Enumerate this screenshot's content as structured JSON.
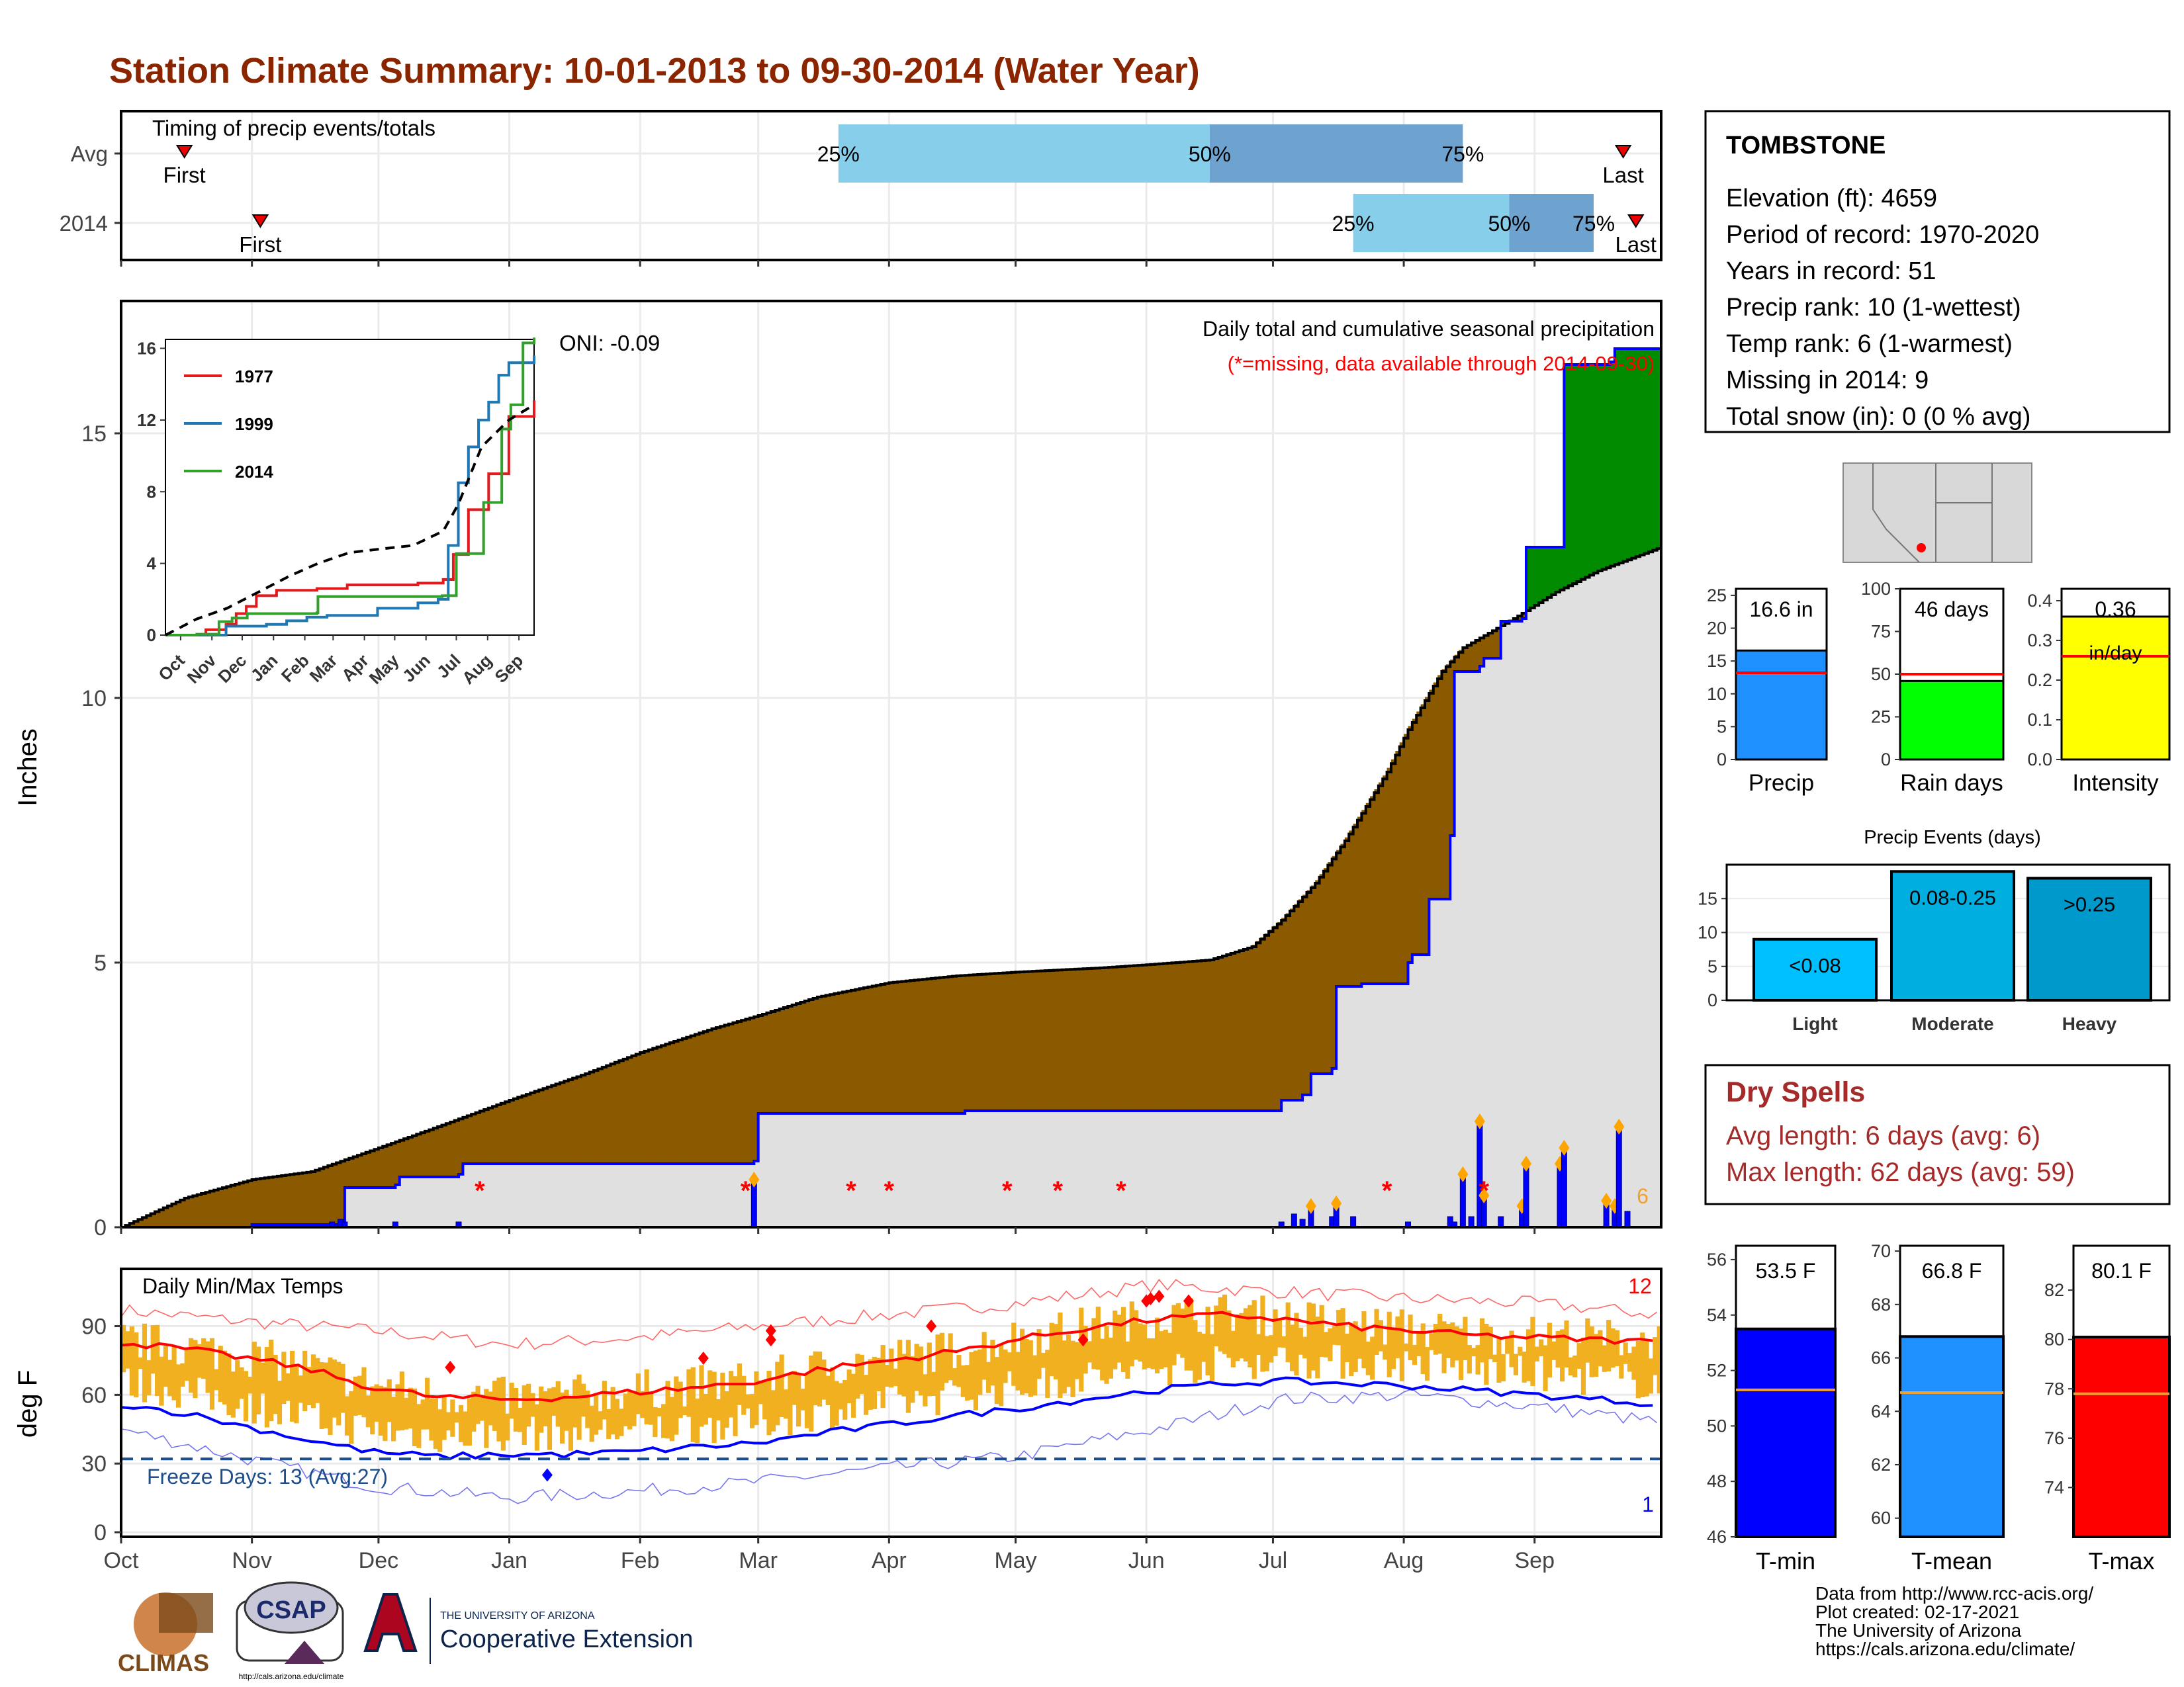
{
  "title": "Station Climate Summary: 10-01-2013 to 09-30-2014 (Water Year)",
  "colors": {
    "title": "#8b2500",
    "brown": "#8b5a00",
    "green": "#008b00",
    "gray_fill": "#e0e0e0",
    "blue": "#0000ff",
    "orange": "#f0b020",
    "red": "#ff0000",
    "light_blue": "#87ceeb",
    "steel": "#6fa3cf",
    "dry": "#a52a2a"
  },
  "months": [
    "Oct",
    "Nov",
    "Dec",
    "Jan",
    "Feb",
    "Mar",
    "Apr",
    "May",
    "Jun",
    "Jul",
    "Aug",
    "Sep"
  ],
  "timing": {
    "label": "Timing of precip events/totals",
    "rows": [
      "Avg",
      "2014"
    ],
    "first_label": "First",
    "last_label": "Last",
    "pct_labels": [
      "25%",
      "50%",
      "75%"
    ],
    "avg_days": {
      "first": 15,
      "p25": 170,
      "p50": 258,
      "p75": 318,
      "last": 356
    },
    "y2014_days": {
      "first": 33,
      "p25": 292,
      "p50": 329,
      "p75": 349,
      "last": 359
    }
  },
  "precip_panel": {
    "ylabel": "Inches",
    "yticks": [
      0,
      5,
      10,
      15
    ],
    "ylim": [
      0,
      17.5
    ],
    "subtitle": "Daily total and cumulative seasonal precipitation",
    "missing_note": "(*=missing, data available through 2014-09-30)",
    "oni": "ONI: -0.09",
    "corner_count": "6",
    "missing_day_marks": [
      85,
      148,
      173,
      182,
      210,
      222,
      237,
      300,
      323
    ]
  },
  "inset": {
    "yticks": [
      0,
      4,
      8,
      12,
      16
    ],
    "ylim": [
      0,
      16.5
    ],
    "xticks": [
      "Oct",
      "Nov",
      "Dec",
      "Jan",
      "Feb",
      "Mar",
      "Apr",
      "May",
      "Jun",
      "Jul",
      "Aug",
      "Sep"
    ],
    "legend": [
      "1977",
      "1999",
      "2014"
    ],
    "legend_colors": [
      "#e31a1c",
      "#1f78b4",
      "#33a02c"
    ]
  },
  "station": {
    "name": "TOMBSTONE",
    "elevation": "Elevation (ft): 4659",
    "period": "Period of record: 1970-2020",
    "years": "Years in record: 51",
    "precip_rank": "Precip rank: 10 (1-wettest)",
    "temp_rank": "Temp rank: 6 (1-warmest)",
    "missing": "Missing in 2014: 9",
    "snow": "Total snow (in): 0 (0 % avg)"
  },
  "mini_bars": [
    {
      "label": "Precip",
      "value_text": "16.6 in",
      "value": 16.6,
      "avg": 13.2,
      "ymax": 26,
      "ticks": [
        0,
        5,
        10,
        15,
        20,
        25
      ],
      "color": "#1e90ff"
    },
    {
      "label": "Rain days",
      "value_text": "46 days",
      "value": 46,
      "avg": 50,
      "ymax": 100,
      "ticks": [
        0,
        25,
        50,
        75,
        100
      ],
      "color": "#00ff00"
    },
    {
      "label": "Intensity",
      "value_text": "0.36",
      "value_text2": "in/day",
      "value": 0.36,
      "avg": 0.26,
      "ymax": 0.43,
      "ticks": [
        "0.0",
        "0.1",
        "0.2",
        "0.3",
        "0.4"
      ],
      "color": "#ffff00"
    }
  ],
  "events": {
    "title": "Precip Events (days)",
    "categories": [
      "Light",
      "Moderate",
      "Heavy"
    ],
    "bar_labels": [
      "<0.08",
      "0.08-0.25",
      ">0.25"
    ],
    "values": [
      9,
      19,
      18
    ],
    "colors": [
      "#00bfff",
      "#00aee0",
      "#0099cc"
    ],
    "yticks": [
      0,
      5,
      10,
      15
    ]
  },
  "dry_spells": {
    "title": "Dry Spells",
    "avg": "Avg length: 6 days (avg: 6)",
    "max": "Max length: 62 days (avg: 59)"
  },
  "temp_panel": {
    "ylabel": "deg F",
    "label": "Daily Min/Max Temps",
    "freeze": "Freeze Days: 13 (Avg:27)",
    "yticks": [
      0,
      30,
      60,
      90
    ],
    "ylim": [
      -2,
      115
    ],
    "freeze_line": 32,
    "count_high": "12",
    "count_low": "1"
  },
  "temp_bars": [
    {
      "label": "T-min",
      "value_text": "53.5 F",
      "value": 53.5,
      "avg": 51.3,
      "range": [
        46,
        56.5
      ],
      "ticks": [
        46,
        48,
        50,
        52,
        54,
        56
      ],
      "color": "#0000ff"
    },
    {
      "label": "T-mean",
      "value_text": "66.8 F",
      "value": 66.8,
      "avg": 64.7,
      "range": [
        59.3,
        70.2
      ],
      "ticks": [
        60,
        62,
        64,
        66,
        68,
        70
      ],
      "color": "#1e90ff"
    },
    {
      "label": "T-max",
      "value_text": "80.1 F",
      "value": 80.1,
      "avg": 77.8,
      "range": [
        72,
        83.8
      ],
      "ticks": [
        74,
        76,
        78,
        80,
        82
      ],
      "color": "#ff0000"
    }
  ],
  "footer": {
    "lines": [
      "Data from http://www.rcc-acis.org/",
      "Plot created: 02-17-2021",
      "The University of Arizona",
      "https://cals.arizona.edu/climate/"
    ],
    "climas": "CLIMAS",
    "csap": "CSAP",
    "csap_url": "http://cals.arizona.edu/climate",
    "ua_small": "THE UNIVERSITY OF ARIZONA",
    "ua_big": "Cooperative Extension"
  },
  "chart_data": {
    "type": "area",
    "title": "Daily total and cumulative seasonal precipitation",
    "ylabel": "Inches",
    "ylim": [
      0,
      17.5
    ],
    "x_unit": "day of water year",
    "avg_cumulative": {
      "x": [
        0,
        15,
        31,
        45,
        61,
        75,
        92,
        110,
        123,
        140,
        151,
        165,
        182,
        198,
        212,
        232,
        245,
        258,
        268,
        275,
        283,
        290,
        300,
        305,
        313,
        318,
        330,
        340,
        350,
        365
      ],
      "y": [
        0,
        0.55,
        0.9,
        1.05,
        1.5,
        1.9,
        2.4,
        2.9,
        3.3,
        3.75,
        4.0,
        4.35,
        4.62,
        4.75,
        4.82,
        4.9,
        4.97,
        5.05,
        5.3,
        5.8,
        6.5,
        7.3,
        8.6,
        9.4,
        10.5,
        10.95,
        11.5,
        12.0,
        12.4,
        12.85
      ]
    },
    "cumulative_2014": {
      "x": [
        0,
        31,
        52,
        53,
        65,
        66,
        80,
        81,
        150,
        151,
        200,
        274,
        275,
        280,
        282,
        287,
        288,
        294,
        305,
        306,
        310,
        315,
        316,
        322,
        323,
        327,
        332,
        333,
        341,
        342,
        353,
        354,
        358,
        359,
        365
      ],
      "y": [
        0,
        0.05,
        0.1,
        0.75,
        0.8,
        0.95,
        1.0,
        1.2,
        1.25,
        2.15,
        2.2,
        2.2,
        2.4,
        2.5,
        2.9,
        3.0,
        4.55,
        4.6,
        5.0,
        5.15,
        6.2,
        7.4,
        10.5,
        10.6,
        10.75,
        11.45,
        11.5,
        12.85,
        12.85,
        16.3,
        16.35,
        16.6,
        16.6,
        16.6,
        16.6
      ]
    },
    "daily_bars": {
      "x": [
        50,
        52,
        53,
        65,
        80,
        150,
        275,
        278,
        280,
        282,
        287,
        288,
        292,
        305,
        315,
        316,
        318,
        320,
        322,
        323,
        327,
        332,
        333,
        341,
        342,
        352,
        354,
        355,
        357
      ],
      "y": [
        0.1,
        0.15,
        0.1,
        0.1,
        0.1,
        0.9,
        0.1,
        0.25,
        0.15,
        0.4,
        0.2,
        0.45,
        0.2,
        0.1,
        0.2,
        0.1,
        1.0,
        0.2,
        2.0,
        0.6,
        0.2,
        0.4,
        1.2,
        1.2,
        1.5,
        0.5,
        0.4,
        1.9,
        0.3
      ]
    },
    "inset_series": [
      {
        "name": "1977",
        "x": [
          0,
          40,
          60,
          70,
          80,
          90,
          110,
          150,
          180,
          200,
          250,
          275,
          285,
          300,
          320,
          340,
          365
        ],
        "y": [
          0,
          0.3,
          0.6,
          1.2,
          1.6,
          2.2,
          2.5,
          2.6,
          2.8,
          2.8,
          2.9,
          3.1,
          4.5,
          7.0,
          9.0,
          12.2,
          13.1
        ]
      },
      {
        "name": "1999",
        "x": [
          0,
          60,
          100,
          120,
          140,
          160,
          190,
          210,
          250,
          270,
          280,
          290,
          300,
          310,
          320,
          330,
          340,
          365
        ],
        "y": [
          0,
          0.5,
          0.6,
          0.8,
          1.0,
          1.1,
          1.1,
          1.5,
          1.8,
          2.0,
          5.0,
          8.5,
          10.5,
          12.0,
          13.0,
          14.5,
          15.2,
          15.6
        ]
      },
      {
        "name": "2014",
        "x": [
          0,
          31,
          53,
          66,
          81,
          150,
          151,
          274,
          288,
          315,
          333,
          342,
          354,
          365
        ],
        "y": [
          0,
          0.05,
          0.75,
          0.95,
          1.2,
          1.25,
          2.15,
          2.2,
          4.55,
          7.4,
          11.5,
          12.85,
          16.3,
          16.6
        ]
      },
      {
        "name": "avg",
        "x": [
          0,
          31,
          61,
          92,
          123,
          151,
          182,
          212,
          245,
          275,
          290,
          313,
          340,
          365
        ],
        "y": [
          0,
          0.9,
          1.5,
          2.4,
          3.3,
          4.0,
          4.6,
          4.8,
          5.0,
          5.8,
          7.3,
          10.5,
          12.0,
          12.85
        ]
      }
    ],
    "temps": {
      "avg_max_x": [
        0,
        15,
        30,
        45,
        60,
        75,
        92,
        105,
        120,
        135,
        151,
        165,
        182,
        198,
        212,
        228,
        245,
        262,
        275,
        290,
        305,
        320,
        335,
        350,
        365
      ],
      "avg_max_y": [
        83,
        80,
        76,
        71,
        63,
        59,
        58,
        59,
        61,
        63,
        66,
        71,
        75,
        79,
        84,
        89,
        93,
        95,
        93,
        90,
        88,
        86,
        85,
        84,
        83
      ],
      "avg_min_x": [
        0,
        15,
        30,
        45,
        60,
        75,
        92,
        105,
        120,
        135,
        151,
        165,
        182,
        198,
        212,
        228,
        245,
        262,
        275,
        290,
        305,
        320,
        335,
        350,
        365
      ],
      "avg_min_y": [
        56,
        52,
        46,
        40,
        35,
        33,
        34,
        34,
        35,
        37,
        39,
        43,
        47,
        51,
        54,
        58,
        62,
        65,
        66,
        65,
        64,
        62,
        60,
        58,
        56
      ],
      "record_max_x": [
        0,
        30,
        60,
        92,
        123,
        151,
        182,
        212,
        245,
        275,
        305,
        335,
        365
      ],
      "record_max_y": [
        97,
        92,
        88,
        82,
        85,
        90,
        95,
        100,
        108,
        105,
        102,
        100,
        95
      ],
      "record_min_x": [
        0,
        30,
        60,
        92,
        123,
        151,
        182,
        212,
        245,
        275,
        305,
        335,
        365
      ],
      "record_min_y": [
        45,
        32,
        20,
        15,
        18,
        22,
        28,
        33,
        45,
        58,
        60,
        55,
        48
      ]
    }
  }
}
